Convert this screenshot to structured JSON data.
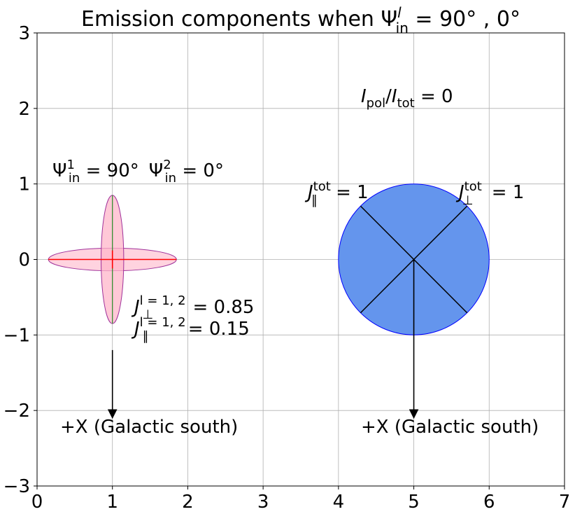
{
  "chart_data": {
    "type": "diagram",
    "title": "Emission components when Ψ_in^l = 90° , 0°",
    "title_parts": {
      "base": "Emission components when Ψ",
      "sub": "in",
      "sup": "l",
      "rest": " = 90° , 0°"
    },
    "xlim": [
      0,
      7
    ],
    "ylim": [
      -3,
      3
    ],
    "xticks": [
      0,
      1,
      2,
      3,
      4,
      5,
      6,
      7
    ],
    "yticks": [
      -3,
      -2,
      -1,
      0,
      1,
      2,
      3
    ],
    "xtick_labels": [
      "0",
      "1",
      "2",
      "3",
      "4",
      "5",
      "6",
      "7"
    ],
    "ytick_labels": [
      "−3",
      "−2",
      "−1",
      "0",
      "1",
      "2",
      "3"
    ],
    "grid": true,
    "colors": {
      "pink_fill": "#ffb6c9",
      "pink_edge": "#a0309a",
      "red_line": "#ff0000",
      "green_line": "#228b22",
      "blue_fill": "#6495ed",
      "blue_edge": "#0000ff"
    },
    "left_group": {
      "center": [
        1,
        0
      ],
      "ellipse_h": {
        "rx": 0.85,
        "ry": 0.15
      },
      "ellipse_v": {
        "rx": 0.15,
        "ry": 0.85
      },
      "arrow": {
        "from": [
          1,
          -1.2
        ],
        "to": [
          1,
          -2.1
        ]
      },
      "label_psi": "Ψ_in^1 = 90°  Ψ_in^2 = 0°",
      "psi1": {
        "base": "Ψ",
        "sub": "in",
        "sup": "1",
        "rest": " = 90°"
      },
      "psi2": {
        "base": "Ψ",
        "sub": "in",
        "sup": "2",
        "rest": " = 0°"
      },
      "j_perp": {
        "base": "J",
        "sub": "⊥",
        "sup": "l = 1, 2",
        "rest": " = 0.85"
      },
      "j_par": {
        "base": "J",
        "sub": "∥",
        "sup": "l = 1, 2",
        "rest": " = 0.15"
      },
      "direction_label": "+X (Galactic south)"
    },
    "right_group": {
      "center": [
        5,
        0
      ],
      "radius": 1,
      "arrow": {
        "from": [
          5,
          0
        ],
        "to": [
          5,
          -2.1
        ]
      },
      "pol_label": {
        "base1": "I",
        "sub1": "pol",
        "slash": "/",
        "base2": "I",
        "sub2": "tot",
        "rest": " = 0"
      },
      "j_par_tot": {
        "base": "J",
        "sub": "∥",
        "sup": "tot",
        "rest": " = 1"
      },
      "j_perp_tot": {
        "base": "J",
        "sub": "⊥",
        "sup": "tot",
        "rest": " = 1"
      },
      "direction_label": "+X (Galactic south)"
    }
  }
}
